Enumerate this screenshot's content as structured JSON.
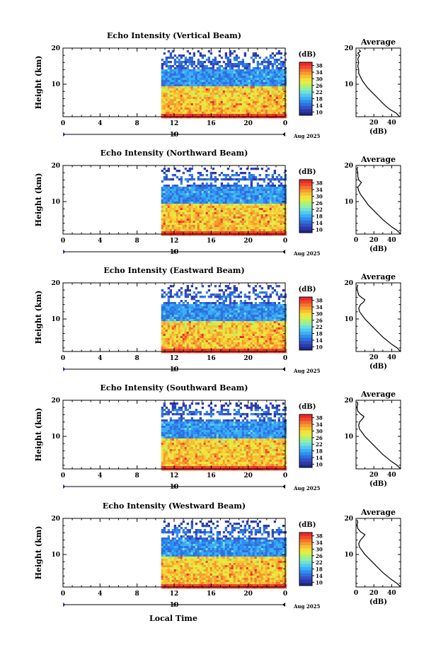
{
  "chart_data": {
    "type": "heatmap",
    "xlabel": "Local Time",
    "x_ticks": [
      "0",
      "4",
      "8",
      "12",
      "16",
      "20",
      "0"
    ],
    "xlim_hours": [
      0,
      24
    ],
    "day_labels": [
      "10"
    ],
    "month_label": "Aug 2025",
    "ylabel": "Height (km)",
    "y_ticks": [
      "10",
      "20"
    ],
    "ylim_km": [
      1,
      20
    ],
    "colorbar": {
      "unit": "(dB)",
      "ticks": [
        "38",
        "34",
        "30",
        "26",
        "22",
        "18",
        "14",
        "10"
      ],
      "range": [
        10,
        38
      ],
      "colors": [
        "#1e2a8c",
        "#2c3aa8",
        "#3350c8",
        "#2f6fdc",
        "#2f8ff0",
        "#3caff5",
        "#54c8f0",
        "#6fe0d4",
        "#8ef0a8",
        "#b4f070",
        "#dcef48",
        "#f5e03a",
        "#f7c034",
        "#f79c30",
        "#f5742e",
        "#f04a2c",
        "#ec2a2a"
      ]
    },
    "data_start_hour": 10.6,
    "panels": [
      {
        "title": "Echo Intensity (Vertical Beam)",
        "avg_title": "Average",
        "avg_xlabel": "(dB)",
        "avg_x_ticks": [
          "20",
          "40"
        ],
        "avg_xlim": [
          0,
          50
        ],
        "avg_profile": [
          [
            49,
            1
          ],
          [
            45,
            2
          ],
          [
            38,
            3
          ],
          [
            33,
            4
          ],
          [
            29,
            5
          ],
          [
            25,
            6
          ],
          [
            21,
            7
          ],
          [
            17,
            8
          ],
          [
            13,
            9
          ],
          [
            10,
            10
          ],
          [
            7,
            11
          ],
          [
            5,
            12
          ],
          [
            3,
            13
          ],
          [
            3,
            14
          ],
          [
            2,
            15
          ],
          [
            3,
            16
          ],
          [
            2,
            17
          ],
          [
            4,
            18
          ],
          [
            2,
            18.6
          ],
          [
            5,
            19.1
          ],
          [
            3,
            19.6
          ]
        ]
      },
      {
        "title": "Echo Intensity (Northward Beam)",
        "avg_title": "Average",
        "avg_xlabel": "(dB)",
        "avg_x_ticks": [
          "0",
          "20",
          "40"
        ],
        "avg_xlim": [
          0,
          50
        ],
        "avg_profile": [
          [
            50,
            1
          ],
          [
            46,
            2
          ],
          [
            40,
            3
          ],
          [
            35,
            4
          ],
          [
            30,
            5
          ],
          [
            26,
            6
          ],
          [
            22,
            7
          ],
          [
            18,
            8
          ],
          [
            14,
            9
          ],
          [
            11,
            10
          ],
          [
            8,
            11
          ],
          [
            5,
            12
          ],
          [
            3,
            13
          ],
          [
            2,
            14
          ],
          [
            4,
            14.6
          ],
          [
            6,
            15.3
          ],
          [
            3,
            16
          ],
          [
            2,
            17
          ],
          [
            2,
            18
          ],
          [
            1,
            19
          ],
          [
            2,
            19.6
          ]
        ]
      },
      {
        "title": "Echo Intensity (Eastward Beam)",
        "avg_title": "Average",
        "avg_xlabel": "(dB)",
        "avg_x_ticks": [
          "20",
          "40"
        ],
        "avg_xlim": [
          0,
          50
        ],
        "avg_profile": [
          [
            50,
            1
          ],
          [
            46,
            2
          ],
          [
            40,
            3
          ],
          [
            35,
            4
          ],
          [
            30,
            5
          ],
          [
            26,
            6
          ],
          [
            22,
            7
          ],
          [
            18,
            8
          ],
          [
            14,
            9
          ],
          [
            10,
            10
          ],
          [
            7,
            11
          ],
          [
            4,
            12
          ],
          [
            3,
            13
          ],
          [
            5,
            14
          ],
          [
            8,
            14.6
          ],
          [
            10,
            15.3
          ],
          [
            6,
            16
          ],
          [
            3,
            16.6
          ],
          [
            2,
            17.5
          ],
          [
            1,
            18.5
          ],
          [
            2,
            19.5
          ]
        ]
      },
      {
        "title": "Echo Intensity (Southward Beam)",
        "avg_title": "Average",
        "avg_xlabel": "(dB)",
        "avg_x_ticks": [
          "20",
          "40"
        ],
        "avg_xlim": [
          0,
          50
        ],
        "avg_profile": [
          [
            50,
            1
          ],
          [
            46,
            2
          ],
          [
            40,
            3
          ],
          [
            35,
            4
          ],
          [
            30,
            5
          ],
          [
            26,
            6
          ],
          [
            22,
            7
          ],
          [
            18,
            8
          ],
          [
            14,
            9
          ],
          [
            10,
            10
          ],
          [
            7,
            11
          ],
          [
            4,
            12
          ],
          [
            3,
            13
          ],
          [
            4,
            14
          ],
          [
            7,
            14.8
          ],
          [
            9,
            15.5
          ],
          [
            5,
            16.2
          ],
          [
            2,
            17
          ],
          [
            1,
            18
          ],
          [
            2,
            19
          ],
          [
            1,
            19.6
          ]
        ]
      },
      {
        "title": "Echo Intensity (Westward Beam)",
        "avg_title": "Average",
        "avg_xlabel": "(dB)",
        "avg_x_ticks": [
          "0",
          "20",
          "40"
        ],
        "avg_xlim": [
          0,
          50
        ],
        "avg_profile": [
          [
            50,
            1
          ],
          [
            46,
            2
          ],
          [
            40,
            3
          ],
          [
            35,
            4
          ],
          [
            30,
            5
          ],
          [
            26,
            6
          ],
          [
            22,
            7
          ],
          [
            18,
            8
          ],
          [
            14,
            9
          ],
          [
            10,
            10
          ],
          [
            7,
            11
          ],
          [
            4,
            12
          ],
          [
            3,
            13
          ],
          [
            5,
            14
          ],
          [
            8,
            14.8
          ],
          [
            10,
            15.5
          ],
          [
            5,
            16.3
          ],
          [
            2,
            17.2
          ],
          [
            1,
            18.2
          ],
          [
            2,
            19
          ],
          [
            1,
            19.6
          ]
        ]
      }
    ]
  }
}
